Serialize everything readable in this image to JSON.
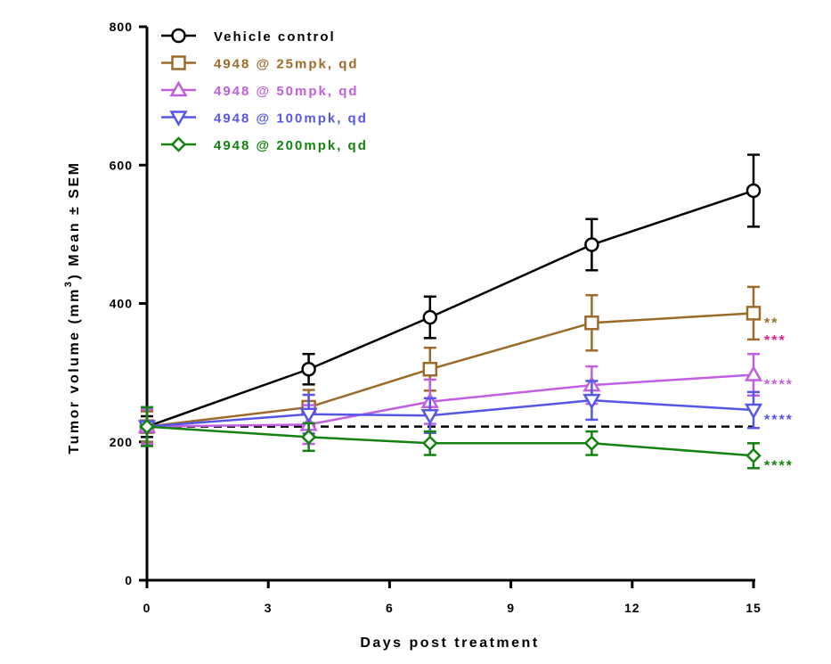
{
  "chart_data": {
    "type": "line",
    "xlabel": "Days post treatment",
    "ylabel_parts": [
      "Tumor volume (mm",
      "3",
      ") Mean ",
      "±",
      " SEM"
    ],
    "xlim": [
      0,
      15
    ],
    "ylim": [
      0,
      800
    ],
    "xticks": [
      0,
      3,
      6,
      9,
      12,
      15
    ],
    "yticks": [
      0,
      200,
      400,
      600,
      800
    ],
    "grid": false,
    "legend_position": "top-left",
    "reference_line": {
      "y": 222,
      "style": "dashed",
      "color": "#000000"
    },
    "series": [
      {
        "name": "Vehicle control",
        "marker": "circle",
        "color": "#000000",
        "x": [
          0,
          4,
          7,
          11,
          15
        ],
        "y": [
          222,
          305,
          380,
          485,
          563
        ],
        "err": [
          15,
          22,
          30,
          37,
          52
        ],
        "significance": ""
      },
      {
        "name": "4948 @ 25mpk, qd",
        "marker": "square",
        "color": "#9C6A2A",
        "x": [
          0,
          4,
          7,
          11,
          15
        ],
        "y": [
          222,
          250,
          305,
          372,
          386
        ],
        "err": [
          22,
          25,
          31,
          40,
          38
        ],
        "significance": "**",
        "sig_color": "#9C6A2A"
      },
      {
        "name": "4948 @ 50mpk, qd",
        "marker": "triangle-up",
        "color": "#C15FE0",
        "x": [
          0,
          4,
          7,
          11,
          15
        ],
        "y": [
          222,
          225,
          258,
          282,
          297
        ],
        "err": [
          25,
          28,
          32,
          27,
          30
        ],
        "significance": "****",
        "sig_color": "#C15FE0"
      },
      {
        "name": "4948 @ 100mpk, qd",
        "marker": "triangle-down",
        "color": "#5656E8",
        "x": [
          0,
          4,
          7,
          11,
          15
        ],
        "y": [
          222,
          240,
          238,
          260,
          246
        ],
        "err": [
          28,
          28,
          25,
          28,
          26
        ],
        "significance": "****",
        "sig_color": "#5656E8"
      },
      {
        "name": "4948 @ 200mpk, qd",
        "marker": "diamond",
        "color": "#13820F",
        "x": [
          0,
          4,
          7,
          11,
          15
        ],
        "y": [
          222,
          207,
          198,
          198,
          180
        ],
        "err": [
          28,
          20,
          17,
          17,
          18
        ],
        "significance": "****",
        "sig_color": "#13820F"
      }
    ],
    "extra_annotations": [
      {
        "text": "***",
        "x": 15,
        "y": 348,
        "color": "#E0218A"
      }
    ]
  }
}
